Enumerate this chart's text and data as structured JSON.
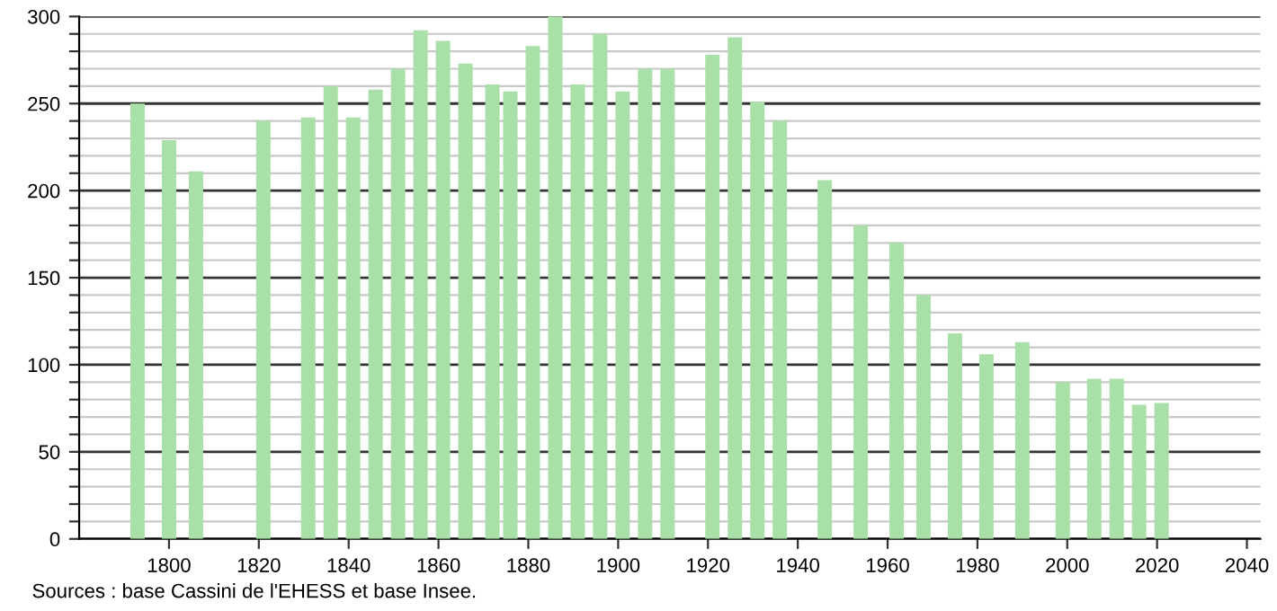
{
  "chart_data": {
    "type": "bar",
    "color": "#a8e0a8",
    "x": [
      1793,
      1800,
      1806,
      1821,
      1831,
      1836,
      1841,
      1846,
      1851,
      1856,
      1861,
      1866,
      1872,
      1876,
      1881,
      1886,
      1891,
      1896,
      1901,
      1906,
      1911,
      1921,
      1926,
      1931,
      1936,
      1946,
      1954,
      1962,
      1968,
      1975,
      1982,
      1990,
      1999,
      2006,
      2011,
      2016,
      2021
    ],
    "values": [
      250,
      229,
      211,
      240,
      242,
      260,
      242,
      258,
      270,
      292,
      286,
      273,
      261,
      257,
      283,
      300,
      261,
      290,
      257,
      270,
      270,
      278,
      288,
      251,
      240,
      206,
      180,
      170,
      140,
      118,
      106,
      113,
      90,
      92,
      92,
      77,
      78
    ],
    "xlim": [
      1780,
      2043
    ],
    "xticks": [
      1800,
      1820,
      1840,
      1860,
      1880,
      1900,
      1920,
      1940,
      1960,
      1980,
      2000,
      2020,
      2040
    ],
    "ylim": [
      0,
      300
    ],
    "yticks": [
      0,
      {
        "value": 10,
        "label": null
      },
      {
        "value": 20,
        "label": null
      },
      {
        "value": 30,
        "label": null
      },
      {
        "value": 40,
        "label": null
      },
      50,
      {
        "value": 60,
        "label": null
      },
      {
        "value": 70,
        "label": null
      },
      {
        "value": 80,
        "label": null
      },
      {
        "value": 90,
        "label": null
      },
      100,
      {
        "value": 110,
        "label": null
      },
      {
        "value": 120,
        "label": null
      },
      {
        "value": 130,
        "label": null
      },
      {
        "value": 140,
        "label": null
      },
      150,
      {
        "value": 160,
        "label": null
      },
      {
        "value": 170,
        "label": null
      },
      {
        "value": 180,
        "label": null
      },
      {
        "value": 190,
        "label": null
      },
      200,
      {
        "value": 210,
        "label": null
      },
      {
        "value": 220,
        "label": null
      },
      {
        "value": 230,
        "label": null
      },
      {
        "value": 240,
        "label": null
      },
      250,
      {
        "value": 260,
        "label": null
      },
      {
        "value": 270,
        "label": null
      },
      {
        "value": 280,
        "label": null
      },
      {
        "value": 290,
        "label": null
      },
      300
    ],
    "grid": "y",
    "annotations": [
      "Sources : base Cassini de l'EHESS et base Insee."
    ]
  }
}
